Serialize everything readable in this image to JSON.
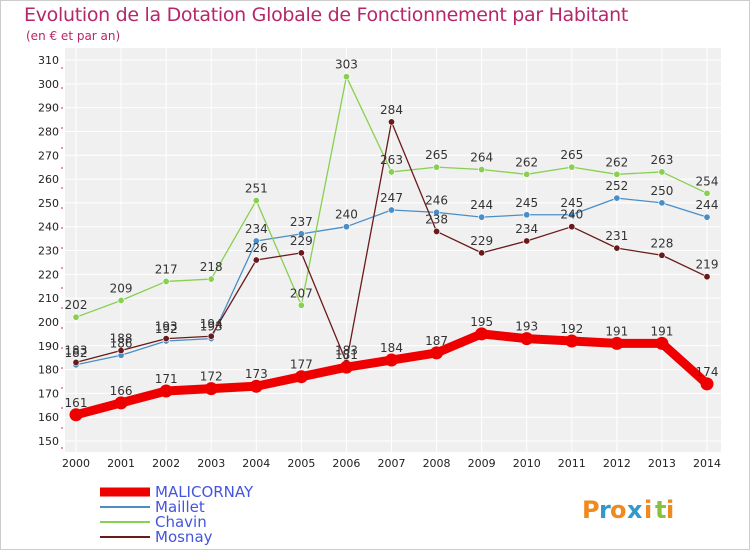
{
  "colors": {
    "title": "#b5276a",
    "plot_bg": "#f0f0f0",
    "grid": "#ffffff",
    "legend_text": "#4455dd"
  },
  "chart_data": {
    "type": "line",
    "title": "Evolution de la Dotation Globale de Fonctionnement par Habitant",
    "subtitle": "(en € et par an)",
    "categories": [
      "2000",
      "2001",
      "2002",
      "2003",
      "2004",
      "2005",
      "2006",
      "2007",
      "2008",
      "2009",
      "2010",
      "2011",
      "2012",
      "2013",
      "2014"
    ],
    "y_ticks": [
      150,
      160,
      170,
      180,
      190,
      200,
      210,
      220,
      230,
      240,
      250,
      260,
      270,
      280,
      290,
      300,
      310
    ],
    "ylim": [
      150,
      310
    ],
    "grid": true,
    "legend_position": "bottom-left",
    "series": [
      {
        "name": "MALICORNAY",
        "color": "#ee0000",
        "width": "thick",
        "values": [
          161,
          166,
          171,
          172,
          173,
          177,
          181,
          184,
          187,
          195,
          193,
          192,
          191,
          191,
          174
        ]
      },
      {
        "name": "Maillet",
        "color": "#4a8ec8",
        "width": "thin",
        "values": [
          182,
          186,
          192,
          193,
          234,
          237,
          240,
          247,
          246,
          244,
          245,
          245,
          252,
          250,
          244
        ]
      },
      {
        "name": "Chavin",
        "color": "#88d050",
        "width": "thin",
        "values": [
          202,
          209,
          217,
          218,
          251,
          207,
          303,
          263,
          265,
          264,
          262,
          265,
          262,
          263,
          254
        ]
      },
      {
        "name": "Mosnay",
        "color": "#6b1a1a",
        "width": "thin",
        "values": [
          183,
          188,
          193,
          194,
          226,
          229,
          183,
          284,
          238,
          229,
          234,
          240,
          231,
          228,
          219
        ]
      }
    ]
  },
  "logo": {
    "letters": [
      "P",
      "r",
      "o",
      "x",
      "i",
      "t",
      "i"
    ],
    "colors": [
      "#f08a1e",
      "#3399cc",
      "#f08a1e",
      "#3399cc",
      "#f08a1e",
      "#88c040",
      "#f08a1e"
    ]
  }
}
